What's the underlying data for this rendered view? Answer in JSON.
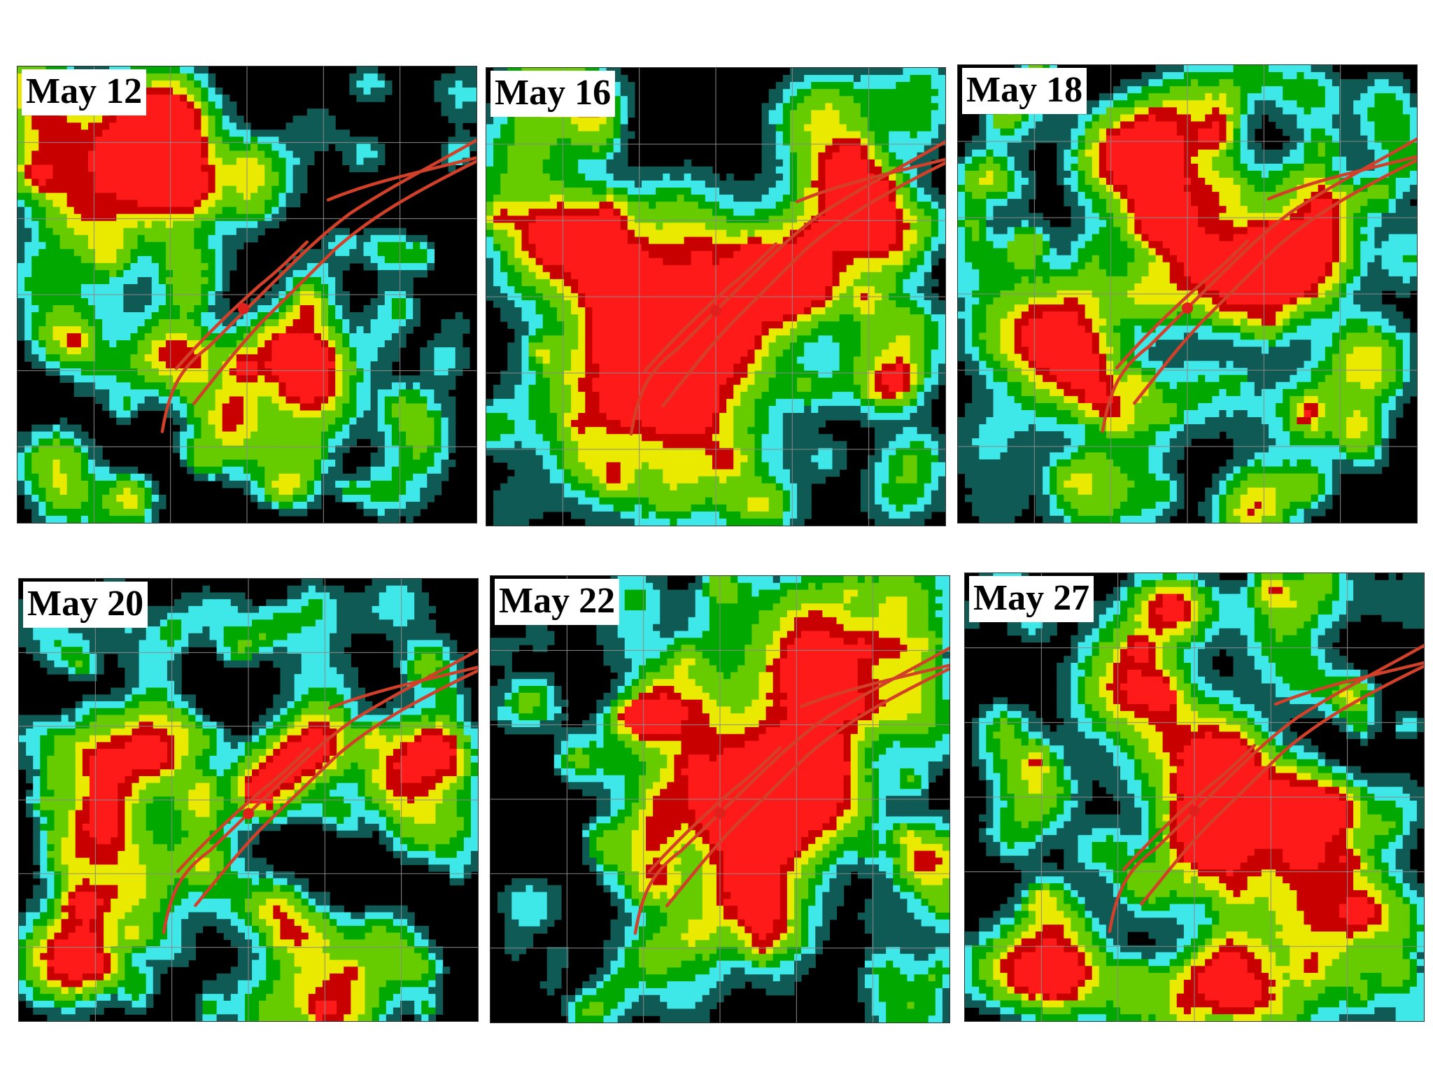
{
  "colors": {
    "background": "#000000",
    "grid": "#8a8a8a",
    "level1": "#0f5a55",
    "level2": "#3ee8e8",
    "level3": "#00a800",
    "level4": "#66cc00",
    "level5": "#eaea00",
    "level6": "#c80000",
    "level7": "#ff1a1a",
    "fault": "#d2402a",
    "epicenter": "#e0201c"
  },
  "panels": [
    {
      "id": "p1",
      "label": "May 12"
    },
    {
      "id": "p2",
      "label": "May 16"
    },
    {
      "id": "p3",
      "label": "May 18"
    },
    {
      "id": "p4",
      "label": "May 20"
    },
    {
      "id": "p5",
      "label": "May 22"
    },
    {
      "id": "p6",
      "label": "May 27"
    }
  ]
}
